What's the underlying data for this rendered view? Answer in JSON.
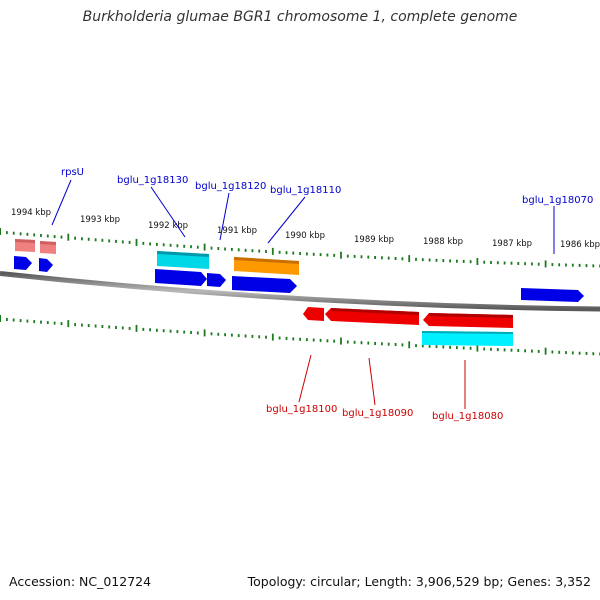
{
  "title": "Burkholderia glumae BGR1 chromosome 1, complete genome",
  "footer": {
    "accession": "Accession: NC_012724",
    "summary": "Topology: circular; Length: 3,906,529 bp; Genes: 3,352"
  },
  "colors": {
    "backbone": "#8c8c8c",
    "ticks": "#1f7a1f",
    "forward_cds": "#0000e6",
    "reverse_cds": "#ee0000",
    "trna": "#00d8e8",
    "rrna": "#ff9900",
    "pseudo": "#f08080",
    "forward_label": "#0000cc",
    "reverse_label": "#cc0000"
  },
  "ruler": {
    "unit": "kbp",
    "labels": [
      "1994 kbp",
      "1993 kbp",
      "1992 kbp",
      "1991 kbp",
      "1990 kbp",
      "1989 kbp",
      "1988 kbp",
      "1987 kbp",
      "1986 kbp"
    ]
  },
  "genes": {
    "forward": [
      {
        "label": "rpsU",
        "kind": "cds"
      },
      {
        "label": "bglu_1g18130",
        "kind": "trna"
      },
      {
        "label": "bglu_1g18120",
        "kind": "cds"
      },
      {
        "label": "bglu_1g18110",
        "kind": "cds"
      },
      {
        "label": "bglu_1g18070",
        "kind": "cds"
      }
    ],
    "reverse": [
      {
        "label": "bglu_1g18100",
        "kind": "cds"
      },
      {
        "label": "bglu_1g18090",
        "kind": "cds"
      },
      {
        "label": "bglu_1g18080",
        "kind": "cds"
      }
    ]
  }
}
